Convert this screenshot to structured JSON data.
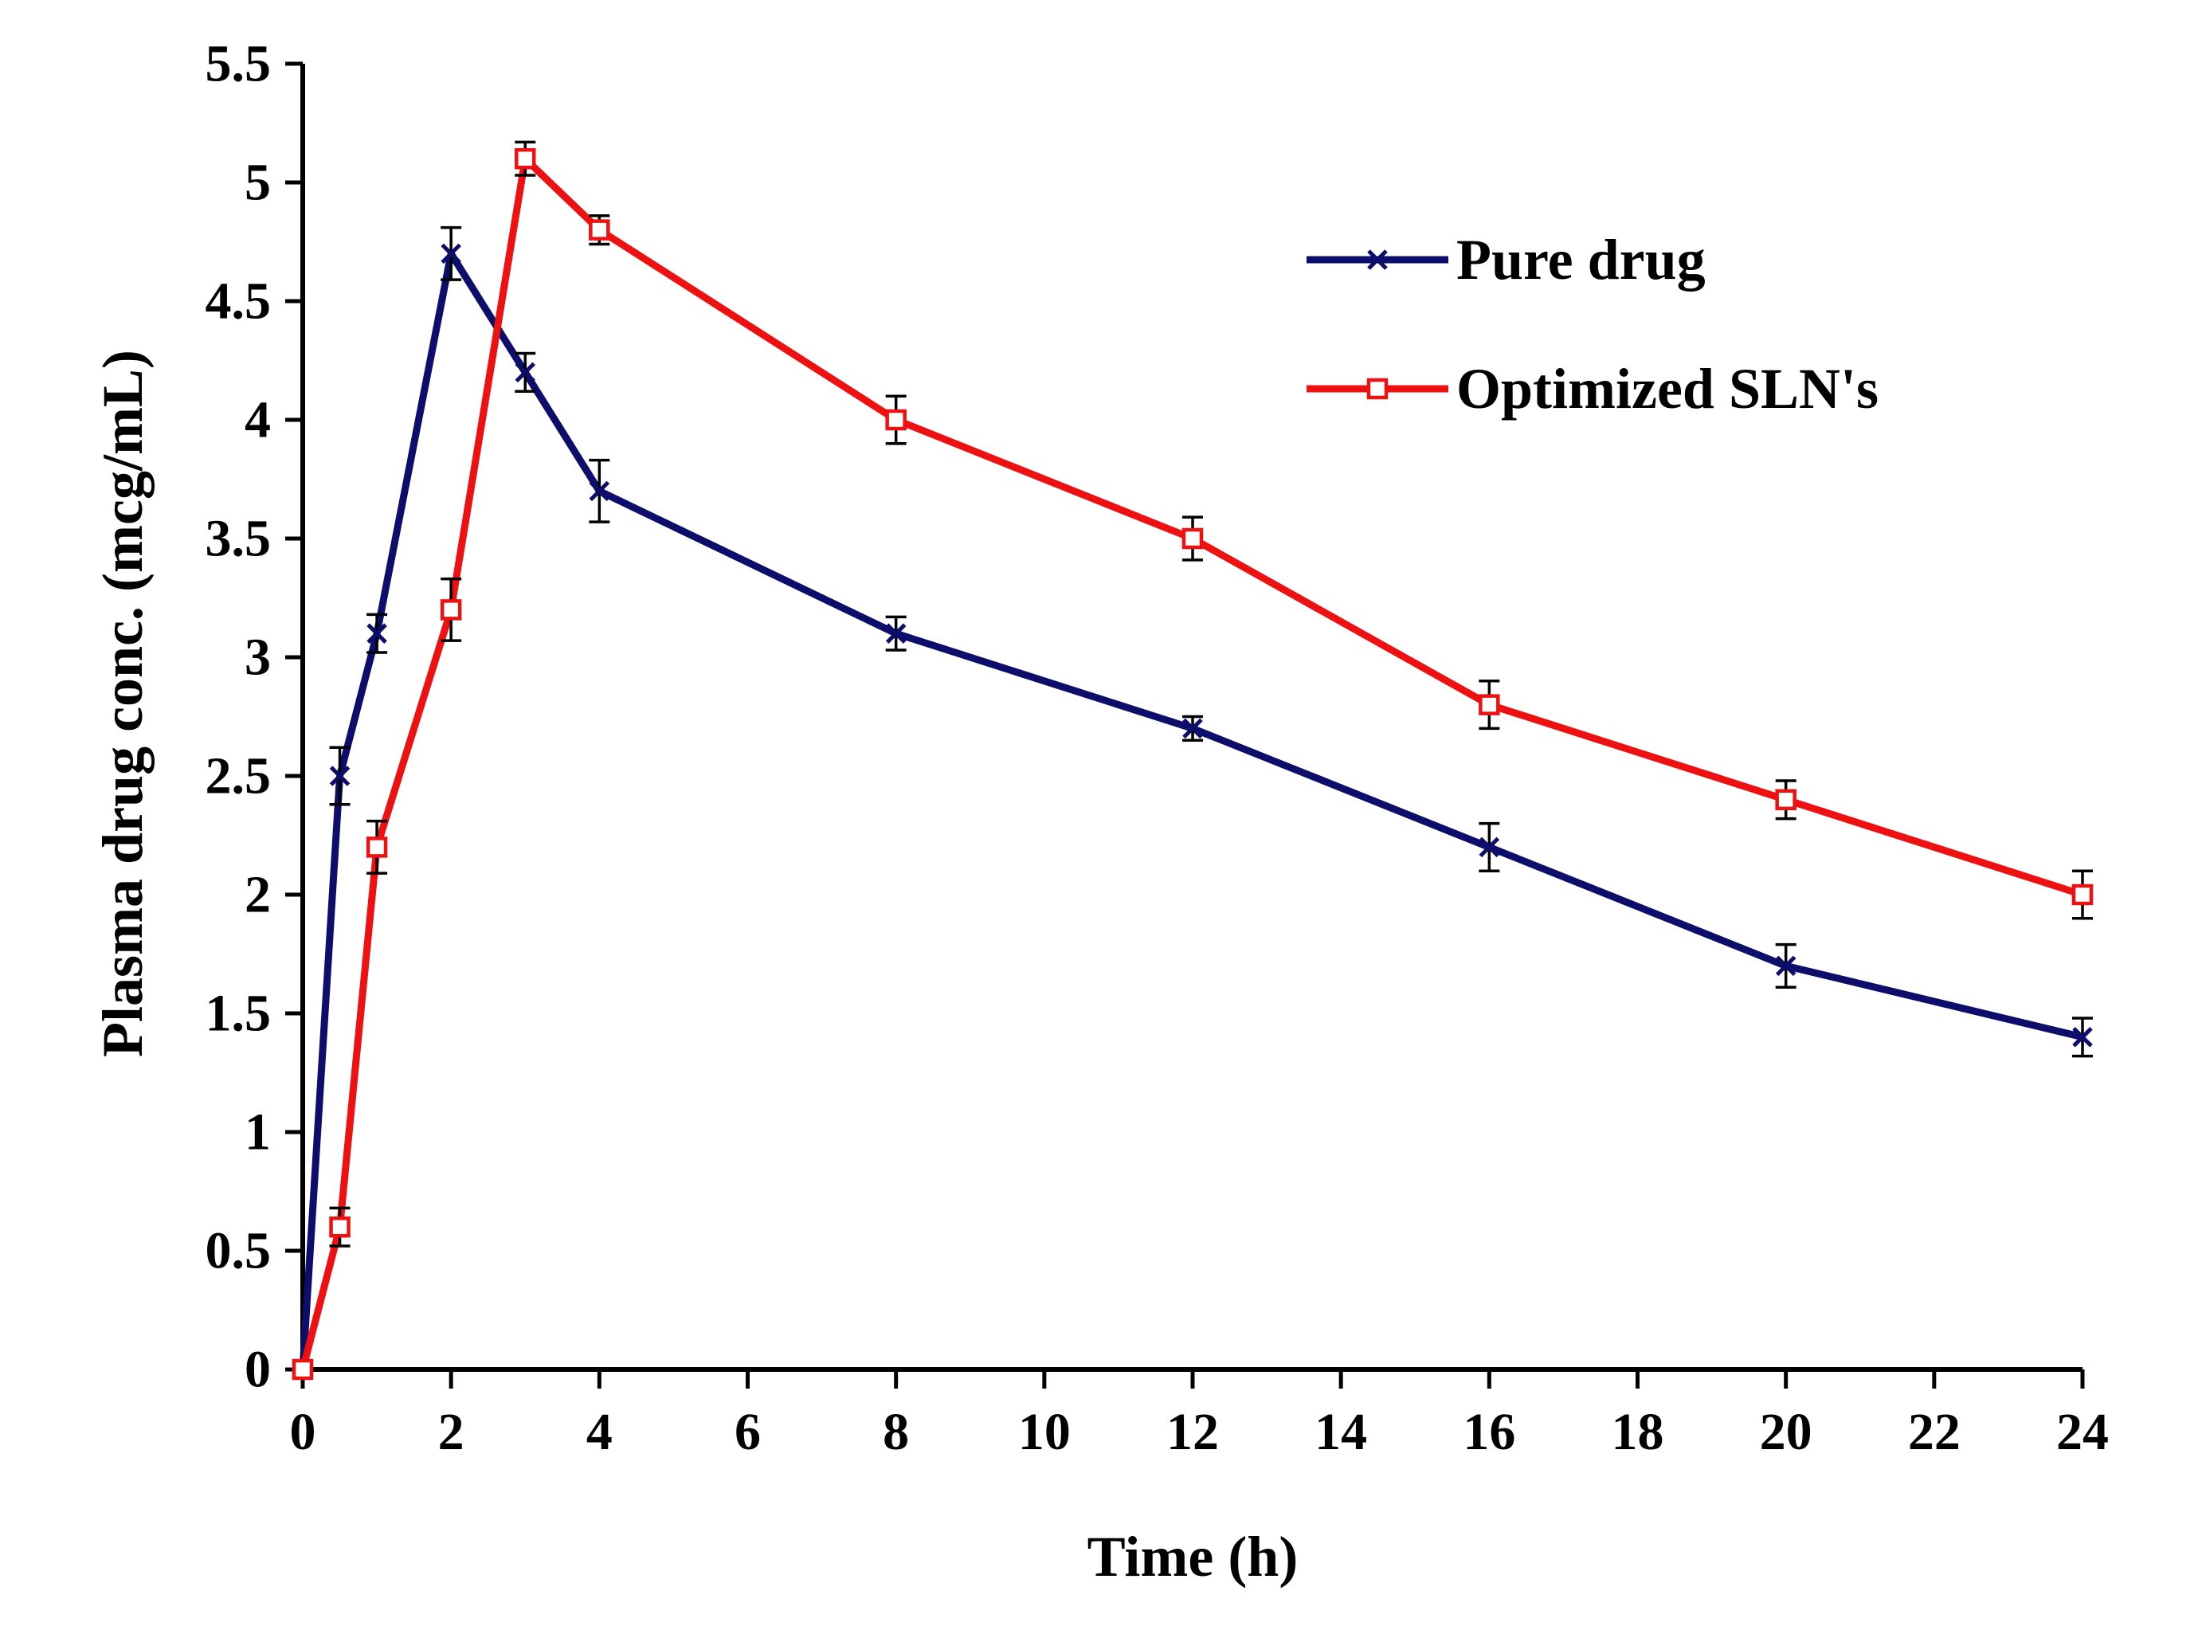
{
  "chart_data": {
    "type": "line",
    "title": "",
    "xlabel": "Time (h)",
    "ylabel": "Plasma drug conc. (mcg/mL)",
    "xlim": [
      0,
      24
    ],
    "ylim": [
      0,
      5.5
    ],
    "x_ticks": [
      0,
      2,
      4,
      6,
      8,
      10,
      12,
      14,
      16,
      18,
      20,
      22,
      24
    ],
    "y_ticks": [
      0,
      0.5,
      1,
      1.5,
      2,
      2.5,
      3,
      3.5,
      4,
      4.5,
      5,
      5.5
    ],
    "x_tick_labels": [
      "0",
      "2",
      "4",
      "6",
      "8",
      "10",
      "12",
      "14",
      "16",
      "18",
      "20",
      "22",
      "24"
    ],
    "y_tick_labels": [
      "0",
      "0.5",
      "1",
      "1.5",
      "2",
      "2.5",
      "3",
      "3.5",
      "4",
      "4.5",
      "5",
      "5.5"
    ],
    "grid": false,
    "legend_position": "top-right",
    "x": [
      0,
      0.5,
      1,
      2,
      3,
      4,
      8,
      12,
      16,
      20,
      24
    ],
    "series": [
      {
        "name": "Pure drug",
        "color": "#0d0d6b",
        "marker": "x",
        "values": [
          0,
          2.5,
          3.1,
          4.7,
          4.2,
          3.7,
          3.1,
          2.7,
          2.2,
          1.7,
          1.4
        ],
        "errors": [
          0,
          0.12,
          0.08,
          0.11,
          0.08,
          0.13,
          0.07,
          0.05,
          0.1,
          0.09,
          0.08
        ]
      },
      {
        "name": "Optimized SLN's",
        "color": "#ee1111",
        "marker": "square",
        "values": [
          0,
          0.6,
          2.2,
          3.2,
          5.1,
          4.8,
          4.0,
          3.5,
          2.8,
          2.4,
          2.0
        ],
        "errors": [
          0,
          0.08,
          0.11,
          0.13,
          0.07,
          0.06,
          0.1,
          0.09,
          0.1,
          0.08,
          0.1
        ]
      }
    ]
  }
}
